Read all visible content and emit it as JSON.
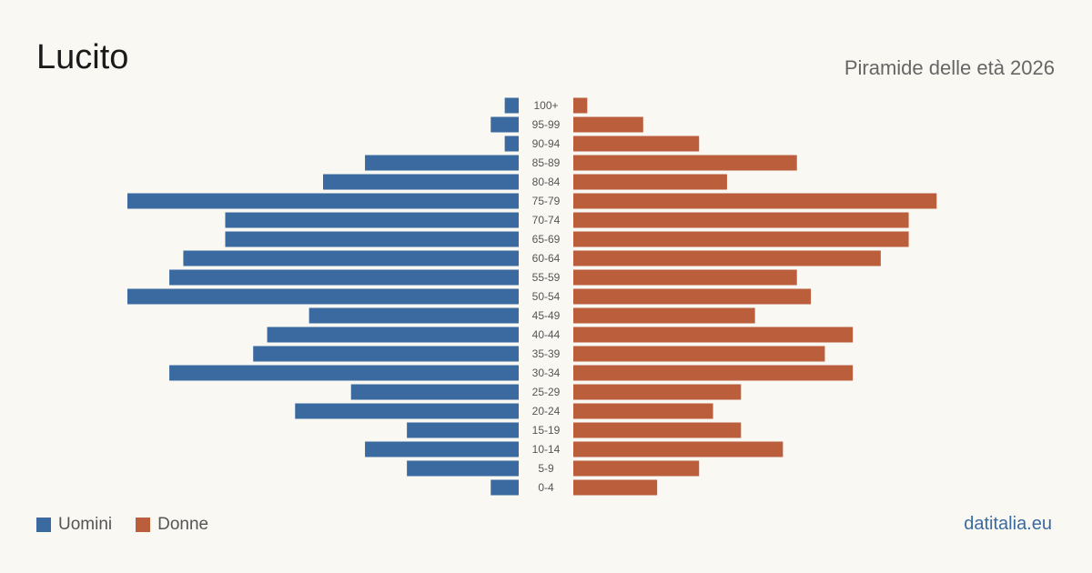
{
  "header": {
    "title": "Lucito",
    "subtitle": "Piramide delle età 2026"
  },
  "legend": {
    "men_label": "Uomini",
    "women_label": "Donne"
  },
  "footer": {
    "source": "datitalia.eu"
  },
  "colors": {
    "men": "#3b6aa0",
    "women": "#bb5e3c",
    "label": "#555555"
  },
  "chart_data": {
    "type": "bar",
    "orientation": "horizontal-pyramid",
    "categories": [
      "100+",
      "95-99",
      "90-94",
      "85-89",
      "80-84",
      "75-79",
      "70-74",
      "65-69",
      "60-64",
      "55-59",
      "50-54",
      "45-49",
      "40-44",
      "35-39",
      "30-34",
      "25-29",
      "20-24",
      "15-19",
      "10-14",
      "5-9",
      "0-4"
    ],
    "series": [
      {
        "name": "Uomini",
        "values": [
          1,
          2,
          1,
          11,
          14,
          28,
          21,
          21,
          24,
          25,
          28,
          15,
          18,
          19,
          25,
          12,
          16,
          8,
          11,
          8,
          2
        ]
      },
      {
        "name": "Donne",
        "values": [
          1,
          5,
          9,
          16,
          11,
          26,
          24,
          24,
          22,
          16,
          17,
          13,
          20,
          18,
          20,
          12,
          10,
          12,
          15,
          9,
          6
        ]
      }
    ],
    "xlim": [
      0,
      28
    ],
    "grid": false,
    "legend_position": "bottom-left"
  }
}
